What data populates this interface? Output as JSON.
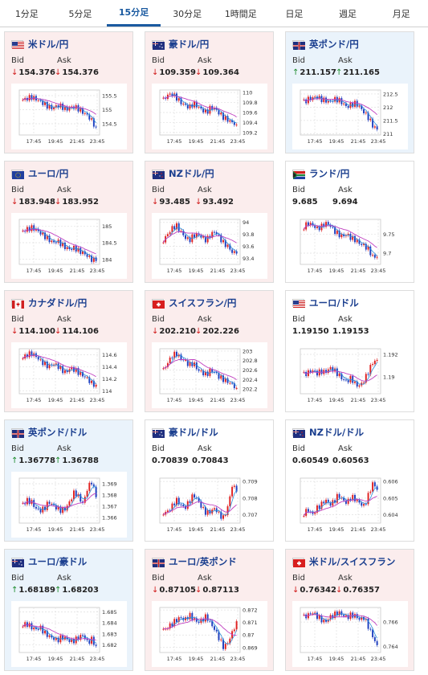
{
  "tabs": [
    {
      "label": "1分足",
      "active": false
    },
    {
      "label": "5分足",
      "active": false
    },
    {
      "label": "15分足",
      "active": true
    },
    {
      "label": "30分足",
      "active": false
    },
    {
      "label": "1時間足",
      "active": false
    },
    {
      "label": "日足",
      "active": false
    },
    {
      "label": "週足",
      "active": false
    },
    {
      "label": "月足",
      "active": false
    }
  ],
  "x_ticks": [
    "17:45",
    "19:45",
    "21:45",
    "23:45"
  ],
  "colors": {
    "down_bg": "#fbeded",
    "up_bg": "#eaf3fb",
    "up_candle": "#e02020",
    "down_candle": "#1f3fc0",
    "ma1": "#2b8fd8",
    "ma2": "#c040c0"
  },
  "bid_label": "Bid",
  "ask_label": "Ask",
  "pairs": [
    {
      "name": "米ドル/円",
      "flag": "us-flag",
      "state": "down",
      "bid": "154.376",
      "ask": "154.376",
      "ticks": [
        "155.5",
        "155",
        "154.5"
      ],
      "ylim": [
        154.1,
        155.7
      ],
      "close_path": [
        155.35,
        155.4,
        155.45,
        155.38,
        155.3,
        155.2,
        155.1,
        155.05,
        155.15,
        155.12,
        155.0,
        155.08,
        155.1,
        155.02,
        154.9,
        154.8,
        154.6,
        154.38
      ]
    },
    {
      "name": "豪ドル/円",
      "flag": "au-flag",
      "state": "down",
      "bid": "109.359",
      "ask": "109.364",
      "ticks": [
        "110",
        "109.8",
        "109.6",
        "109.4",
        "109.2"
      ],
      "ylim": [
        109.15,
        110.05
      ],
      "close_path": [
        109.85,
        109.95,
        109.97,
        109.9,
        109.8,
        109.75,
        109.7,
        109.78,
        109.72,
        109.65,
        109.6,
        109.7,
        109.68,
        109.58,
        109.5,
        109.45,
        109.4,
        109.36
      ]
    },
    {
      "name": "英ポンド/円",
      "flag": "gb-flag",
      "state": "up",
      "bid": "211.157",
      "ask": "211.165",
      "ticks": [
        "212.5",
        "212",
        "211.5",
        "211"
      ],
      "ylim": [
        210.95,
        212.65
      ],
      "close_path": [
        212.2,
        212.3,
        212.35,
        212.4,
        212.3,
        212.25,
        212.2,
        212.3,
        212.28,
        212.15,
        212.0,
        212.1,
        212.15,
        212.0,
        211.8,
        211.6,
        211.3,
        211.16
      ]
    },
    {
      "name": "ユーロ/円",
      "flag": "eu-flag",
      "state": "down",
      "bid": "183.948",
      "ask": "183.952",
      "ticks": [
        "185",
        "184.5",
        "184"
      ],
      "ylim": [
        183.85,
        185.2
      ],
      "close_path": [
        184.85,
        184.9,
        184.95,
        184.9,
        184.8,
        184.7,
        184.6,
        184.5,
        184.55,
        184.45,
        184.35,
        184.3,
        184.35,
        184.25,
        184.2,
        184.1,
        184.0,
        183.95
      ]
    },
    {
      "name": "NZドル/円",
      "flag": "nz-flag",
      "state": "down",
      "bid": "93.485",
      "ask": "93.492",
      "ticks": [
        "94",
        "93.8",
        "93.6",
        "93.4"
      ],
      "ylim": [
        93.3,
        94.05
      ],
      "close_path": [
        93.7,
        93.8,
        93.9,
        93.95,
        93.85,
        93.75,
        93.7,
        93.78,
        93.8,
        93.75,
        93.7,
        93.8,
        93.85,
        93.75,
        93.65,
        93.6,
        93.5,
        93.48
      ]
    },
    {
      "name": "ランド/円",
      "flag": "za-flag",
      "state": "flat",
      "bid": "9.685",
      "ask": "9.694",
      "ticks": [
        "9.75",
        "9.7"
      ],
      "ylim": [
        9.67,
        9.79
      ],
      "close_path": [
        9.77,
        9.78,
        9.775,
        9.765,
        9.77,
        9.78,
        9.775,
        9.76,
        9.75,
        9.745,
        9.75,
        9.74,
        9.735,
        9.725,
        9.72,
        9.71,
        9.69,
        9.69
      ]
    },
    {
      "name": "カナダドル/円",
      "flag": "ca-flag",
      "state": "down",
      "bid": "114.100",
      "ask": "114.106",
      "ticks": [
        "114.6",
        "114.4",
        "114.2",
        "114"
      ],
      "ylim": [
        113.95,
        114.7
      ],
      "close_path": [
        114.55,
        114.6,
        114.62,
        114.58,
        114.5,
        114.45,
        114.4,
        114.45,
        114.42,
        114.35,
        114.3,
        114.38,
        114.35,
        114.3,
        114.25,
        114.2,
        114.12,
        114.1
      ]
    },
    {
      "name": "スイスフラン/円",
      "flag": "ch-flag",
      "state": "down",
      "bid": "202.210",
      "ask": "202.226",
      "ticks": [
        "203",
        "202.8",
        "202.6",
        "202.4",
        "202.2"
      ],
      "ylim": [
        202.1,
        203.05
      ],
      "close_path": [
        202.6,
        202.75,
        202.9,
        202.95,
        202.85,
        202.8,
        202.7,
        202.75,
        202.6,
        202.55,
        202.5,
        202.6,
        202.55,
        202.45,
        202.4,
        202.35,
        202.3,
        202.22
      ]
    },
    {
      "name": "ユーロ/ドル",
      "flag": "us-flag",
      "state": "flat",
      "bid": "1.19150",
      "ask": "1.19153",
      "ticks": [
        "1.192",
        "1.19"
      ],
      "ylim": [
        1.1885,
        1.1925
      ],
      "close_path": [
        1.1902,
        1.1904,
        1.1906,
        1.1903,
        1.1905,
        1.1904,
        1.1908,
        1.1906,
        1.1902,
        1.1898,
        1.1896,
        1.1899,
        1.1893,
        1.1892,
        1.1897,
        1.1905,
        1.1913,
        1.1915
      ]
    },
    {
      "name": "英ポンド/ドル",
      "flag": "gb-flag",
      "state": "up",
      "bid": "1.36778",
      "ask": "1.36788",
      "ticks": [
        "1.369",
        "1.368",
        "1.367",
        "1.366"
      ],
      "ylim": [
        1.3655,
        1.3695
      ],
      "close_path": [
        1.3672,
        1.3675,
        1.3674,
        1.3668,
        1.3666,
        1.3668,
        1.3674,
        1.3671,
        1.3668,
        1.3666,
        1.3668,
        1.3675,
        1.3683,
        1.3678,
        1.3672,
        1.3686,
        1.3692,
        1.3678
      ]
    },
    {
      "name": "豪ドル/ドル",
      "flag": "au-flag",
      "state": "flat",
      "bid": "0.70839",
      "ask": "0.70843",
      "ticks": [
        "0.709",
        "0.708",
        "0.707"
      ],
      "ylim": [
        0.7065,
        0.7092
      ],
      "close_path": [
        0.7071,
        0.7072,
        0.7075,
        0.7079,
        0.7076,
        0.7074,
        0.7078,
        0.7082,
        0.7079,
        0.7074,
        0.7071,
        0.7072,
        0.7074,
        0.707,
        0.7068,
        0.7075,
        0.7088,
        0.7084
      ]
    },
    {
      "name": "NZドル/ドル",
      "flag": "nz-flag",
      "state": "flat",
      "bid": "0.60549",
      "ask": "0.60563",
      "ticks": [
        "0.606",
        "0.605",
        "0.604"
      ],
      "ylim": [
        0.6035,
        0.6062
      ],
      "close_path": [
        0.6041,
        0.6043,
        0.604,
        0.6044,
        0.6046,
        0.6049,
        0.6046,
        0.6048,
        0.6052,
        0.6049,
        0.6047,
        0.6051,
        0.6049,
        0.6047,
        0.6045,
        0.6052,
        0.6059,
        0.6055
      ]
    },
    {
      "name": "ユーロ/豪ドル",
      "flag": "au-flag",
      "state": "up",
      "bid": "1.68189",
      "ask": "1.68203",
      "ticks": [
        "1.685",
        "1.684",
        "1.683",
        "1.682"
      ],
      "ylim": [
        1.6813,
        1.6854
      ],
      "close_path": [
        1.6838,
        1.6839,
        1.6836,
        1.6834,
        1.6836,
        1.6831,
        1.6828,
        1.6826,
        1.6824,
        1.6827,
        1.6826,
        1.6823,
        1.6824,
        1.6827,
        1.6829,
        1.6822,
        1.6825,
        1.6819
      ]
    },
    {
      "name": "ユーロ/英ポンド",
      "flag": "gb-flag",
      "state": "down",
      "bid": "0.87105",
      "ask": "0.87113",
      "ticks": [
        "0.872",
        "0.871",
        "0.87",
        "0.869"
      ],
      "ylim": [
        0.8686,
        0.8722
      ],
      "close_path": [
        0.8704,
        0.8706,
        0.8709,
        0.8712,
        0.8714,
        0.8712,
        0.8716,
        0.8713,
        0.871,
        0.8712,
        0.8715,
        0.8709,
        0.8704,
        0.8697,
        0.869,
        0.8694,
        0.8702,
        0.8711
      ]
    },
    {
      "name": "米ドル/スイスフラン",
      "flag": "ch-flag",
      "state": "down",
      "bid": "0.76342",
      "ask": "0.76357",
      "ticks": [
        "0.766",
        "0.764"
      ],
      "ylim": [
        0.7635,
        0.7672
      ],
      "close_path": [
        0.7664,
        0.7666,
        0.7668,
        0.7665,
        0.7662,
        0.766,
        0.7664,
        0.7666,
        0.7668,
        0.7666,
        0.7664,
        0.7666,
        0.7665,
        0.7662,
        0.7664,
        0.7656,
        0.7648,
        0.7641
      ]
    }
  ]
}
